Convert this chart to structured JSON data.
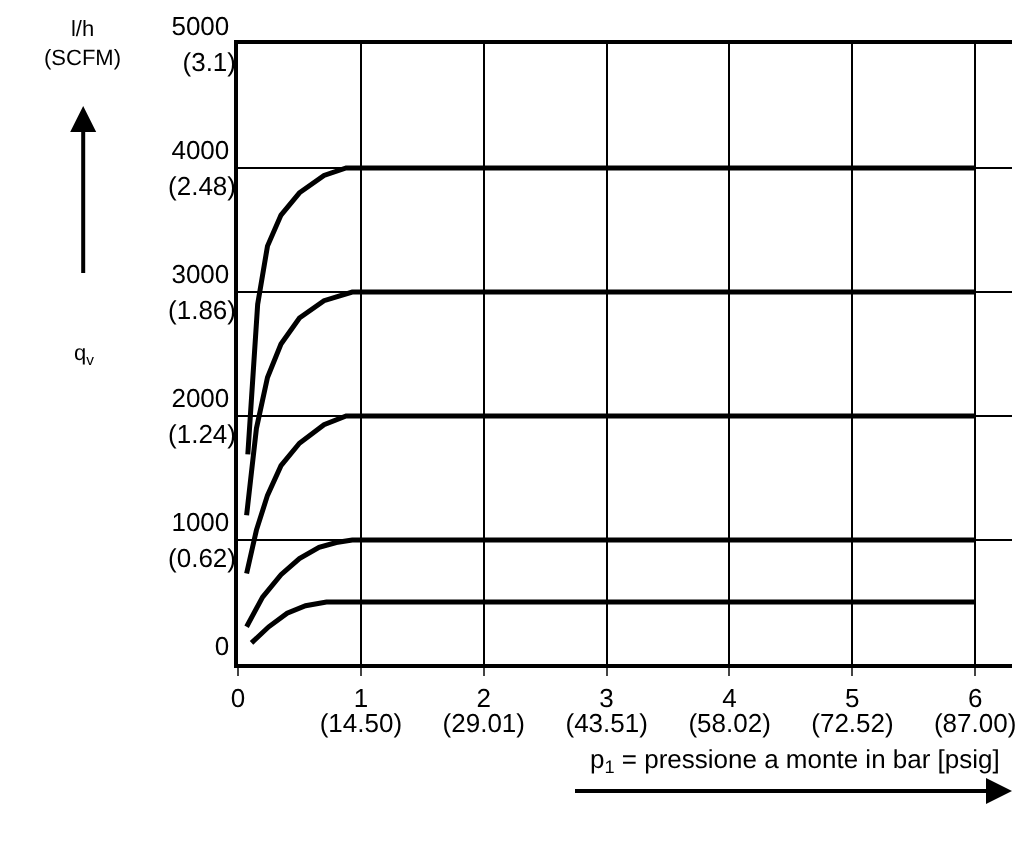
{
  "chart_data": {
    "type": "line",
    "xlabel": "p$_{1}$ = pressione a monte in bar [psig]",
    "ylabel": "l/h\n(SCFM)",
    "annotations": [
      "q$_{v}$"
    ],
    "series": [
      {
        "color": "#000000",
        "x": [
          0.08,
          0.16,
          0.24,
          0.35,
          0.5,
          0.7,
          0.88,
          1.0,
          6
        ],
        "values": [
          1690,
          2900,
          3370,
          3620,
          3800,
          3940,
          4000,
          4000,
          4000
        ]
      },
      {
        "color": "#000000",
        "x": [
          0.07,
          0.15,
          0.24,
          0.35,
          0.5,
          0.7,
          0.93,
          1.0,
          6
        ],
        "values": [
          1200,
          1900,
          2310,
          2580,
          2790,
          2930,
          3000,
          3000,
          3000
        ]
      },
      {
        "color": "#000000",
        "x": [
          0.07,
          0.15,
          0.24,
          0.35,
          0.5,
          0.7,
          0.88,
          1.0,
          6
        ],
        "values": [
          730,
          1080,
          1360,
          1600,
          1780,
          1930,
          2000,
          2000,
          2000
        ]
      },
      {
        "color": "#000000",
        "x": [
          0.07,
          0.2,
          0.35,
          0.5,
          0.66,
          0.8,
          0.93,
          1.0,
          6
        ],
        "values": [
          300,
          540,
          720,
          850,
          940,
          980,
          1000,
          1000,
          1000
        ]
      },
      {
        "color": "#000000",
        "x": [
          0.11,
          0.25,
          0.4,
          0.55,
          0.72,
          0.85,
          1.0,
          6
        ],
        "values": [
          170,
          300,
          410,
          470,
          500,
          500,
          500,
          500
        ]
      }
    ],
    "xlim": [
      0,
      6.3
    ],
    "xticks": [
      0,
      1,
      2,
      3,
      4,
      5,
      6
    ],
    "x2lim": [
      0,
      91.35
    ],
    "x2ticks": [
      {
        "value": 14.5,
        "label": "(14.50)"
      },
      {
        "value": 29.01,
        "label": "(29.01)"
      },
      {
        "value": 43.51,
        "label": "(43.51)"
      },
      {
        "value": 58.02,
        "label": "(58.02)"
      },
      {
        "value": 72.52,
        "label": "(72.52)"
      },
      {
        "value": 87.0,
        "label": "(87.00)"
      }
    ],
    "ylim": [
      0,
      5000
    ],
    "yticks": [
      0,
      1000,
      2000,
      3000,
      4000,
      5000
    ],
    "y2lim": [
      0,
      3.1
    ],
    "y2ticks": [
      {
        "value": 0.62,
        "label": "(0.62)"
      },
      {
        "value": 1.24,
        "label": "(1.24)"
      },
      {
        "value": 1.86,
        "label": "(1.86)"
      },
      {
        "value": 2.48,
        "label": "(2.48)"
      },
      {
        "value": 3.1,
        "label": "(3.1)"
      }
    ],
    "grid": true,
    "marker": "none",
    "line_style": "solid"
  }
}
